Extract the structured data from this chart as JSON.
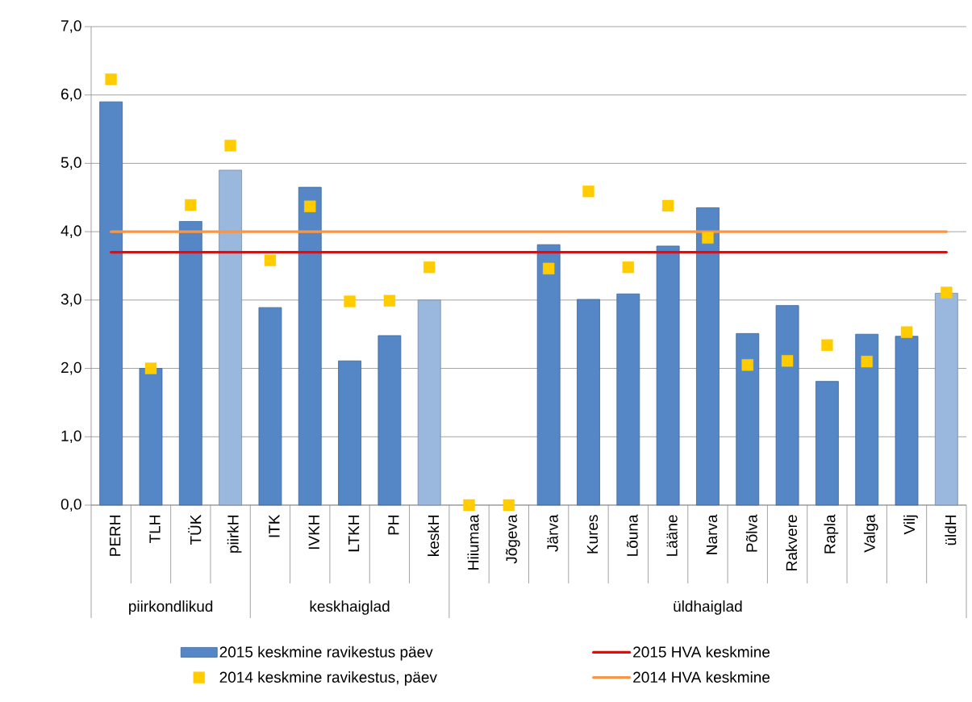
{
  "chart_data": {
    "type": "bar",
    "categories": [
      "PERH",
      "TLH",
      "TÜK",
      "piirkH",
      "ITK",
      "IVKH",
      "LTKH",
      "PH",
      "keskH",
      "Hiiumaa",
      "Jõgeva",
      "Järva",
      "Kures",
      "Lõuna",
      "Lääne",
      "Narva",
      "Põlva",
      "Rakvere",
      "Rapla",
      "Valga",
      "Vilj",
      "üldH"
    ],
    "series": [
      {
        "name": "2015 keskmine ravikestus päev",
        "type": "bar",
        "colors": [
          "#5586C6",
          "#5586C6",
          "#5586C6",
          "#9AB7DE",
          "#5586C6",
          "#5586C6",
          "#5586C6",
          "#5586C6",
          "#9AB7DE",
          "#5586C6",
          "#5586C6",
          "#5586C6",
          "#5586C6",
          "#5586C6",
          "#5586C6",
          "#5586C6",
          "#5586C6",
          "#5586C6",
          "#5586C6",
          "#5586C6",
          "#5586C6",
          "#9AB7DE"
        ],
        "values": [
          5.9,
          2.0,
          4.15,
          4.9,
          2.89,
          4.65,
          2.11,
          2.48,
          3.0,
          null,
          null,
          3.81,
          3.01,
          3.09,
          3.79,
          4.35,
          2.51,
          2.92,
          1.81,
          2.5,
          2.47,
          3.1
        ]
      },
      {
        "name": "2014 keskmine ravikestus, päev",
        "type": "scatter",
        "color": "#FFCC00",
        "marker": "square",
        "values": [
          6.23,
          2.0,
          4.39,
          5.26,
          3.58,
          4.37,
          2.98,
          2.99,
          3.48,
          0,
          0,
          3.46,
          4.59,
          3.48,
          4.38,
          3.91,
          2.05,
          2.11,
          2.34,
          2.1,
          2.53,
          3.11
        ]
      }
    ],
    "ylim": [
      0,
      7
    ],
    "yticks": [
      {
        "value": 0,
        "label": "0,0"
      },
      {
        "value": 1,
        "label": "1,0"
      },
      {
        "value": 2,
        "label": "2,0"
      },
      {
        "value": 3,
        "label": "3,0"
      },
      {
        "value": 4,
        "label": "4,0"
      },
      {
        "value": 5,
        "label": "5,0"
      },
      {
        "value": 6,
        "label": "6,0"
      },
      {
        "value": 7,
        "label": "7,0"
      }
    ],
    "grid": "y",
    "legend": "bottom",
    "ref_lines": [
      {
        "axis": "y",
        "value": 3.7,
        "label": "2015 HVA keskmine",
        "color": "#FF0000"
      },
      {
        "axis": "y",
        "value": 4.0,
        "label": "2014 HVA keskmine",
        "color": "#F79646"
      }
    ],
    "annotations": [
      "piirkondlikud",
      "keskhaiglad",
      "üldhaiglad"
    ]
  }
}
